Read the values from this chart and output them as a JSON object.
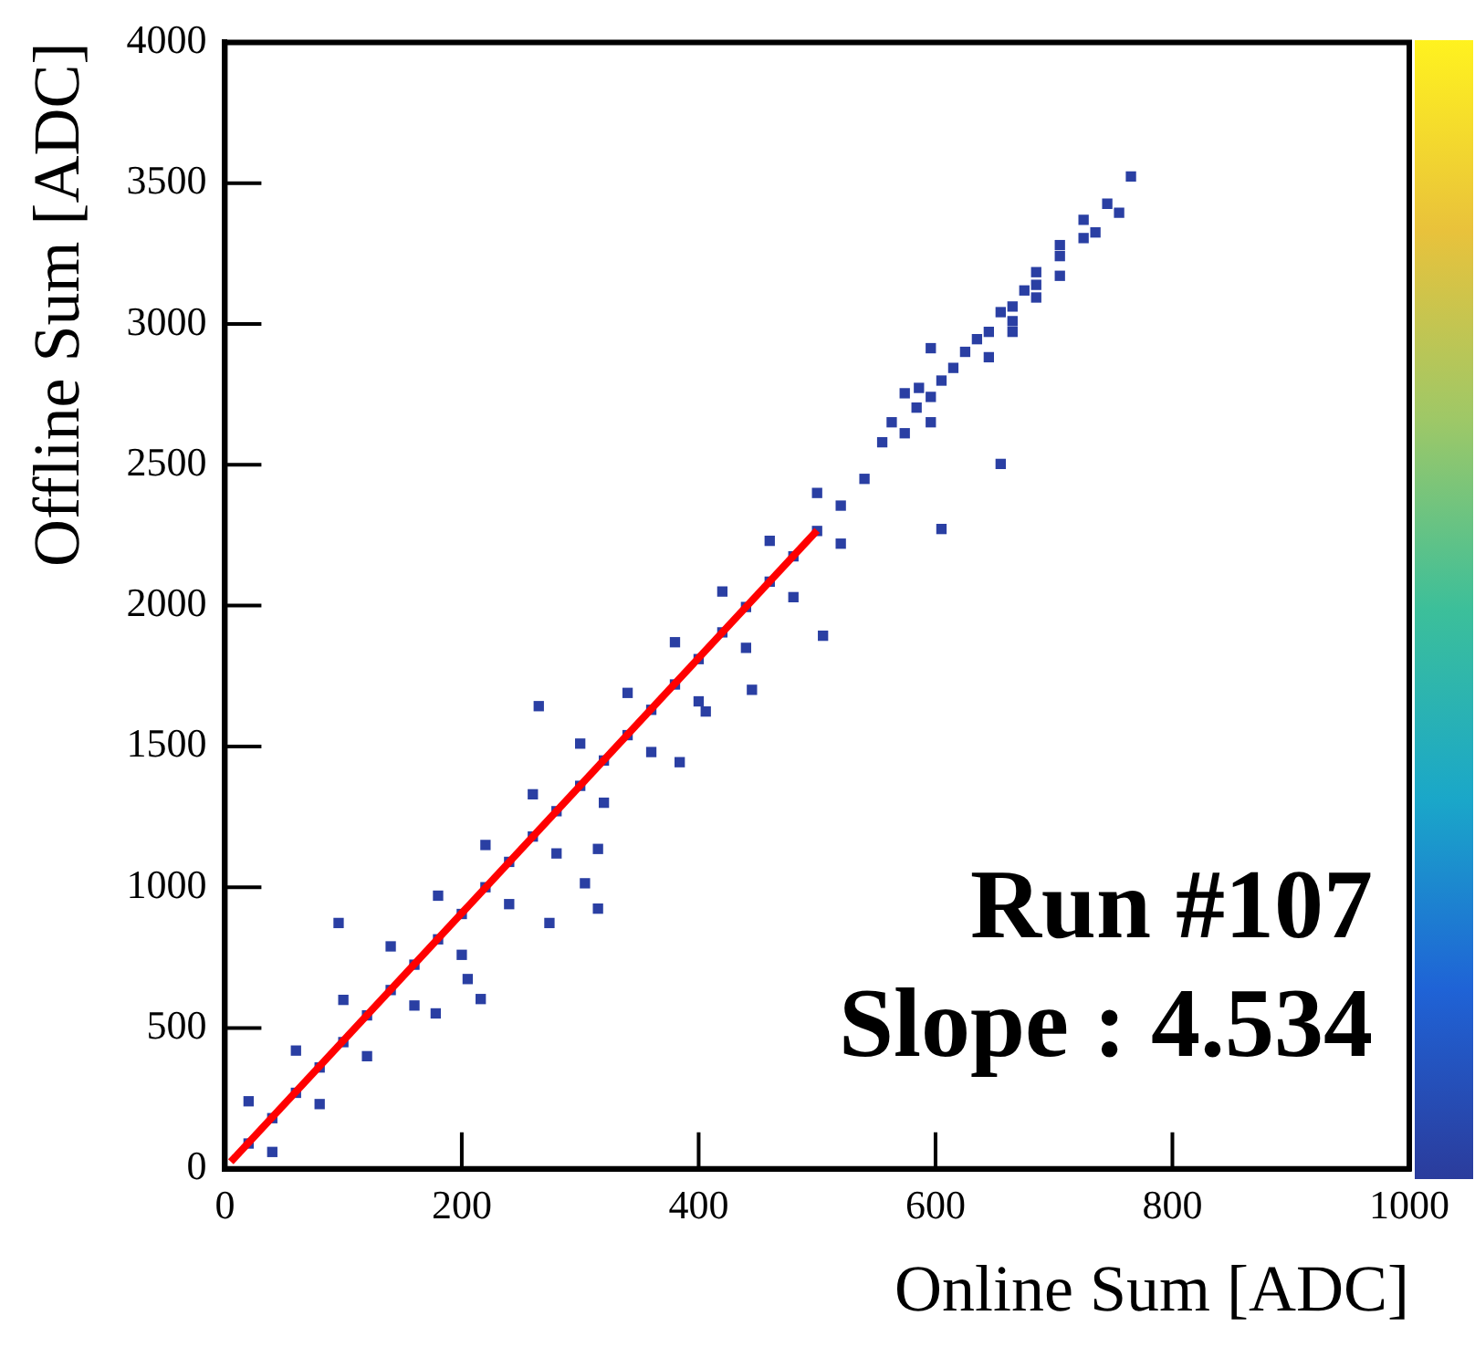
{
  "chart_data": {
    "type": "scatter",
    "xlabel": "Online Sum [ADC]",
    "ylabel": "Offline Sum [ADC]",
    "xlim": [
      0,
      1000
    ],
    "xticks": [
      0,
      200,
      400,
      600,
      800,
      1000
    ],
    "ylim": [
      0,
      4000
    ],
    "yticks": [
      0,
      500,
      1000,
      1500,
      2000,
      2500,
      3000,
      3500,
      4000
    ],
    "grid": false,
    "marker": "square",
    "series": [
      {
        "color": "#2a3fa3",
        "x": [
          20,
          40,
          60,
          80,
          100,
          120,
          140,
          160,
          180,
          200,
          220,
          240,
          260,
          280,
          300,
          320,
          340,
          360,
          380,
          400,
          420,
          440,
          460,
          480,
          500,
          520,
          540,
          20,
          60,
          100,
          140,
          180,
          220,
          260,
          300,
          340,
          380,
          420,
          460,
          500,
          40,
          80,
          120,
          160,
          200,
          240,
          280,
          320,
          360,
          400,
          440,
          480,
          520,
          765,
          745,
          755,
          725,
          735,
          725,
          705,
          705,
          705,
          685,
          685,
          675,
          685,
          665,
          655,
          665,
          665,
          645,
          635,
          596,
          645,
          625,
          615,
          605,
          586,
          596,
          574,
          584,
          596,
          563,
          574,
          555,
          655,
          605,
          505,
          445,
          265,
          406,
          384,
          315,
          304,
          274,
          315,
          96,
          216,
          205,
          178
        ],
        "values": [
          90,
          180,
          270,
          360,
          450,
          545,
          635,
          725,
          815,
          905,
          1000,
          1090,
          1180,
          1270,
          1360,
          1450,
          1540,
          1630,
          1720,
          1810,
          1905,
          1995,
          2085,
          2175,
          2265,
          2355,
          2450,
          240,
          420,
          600,
          790,
          970,
          1150,
          1330,
          1510,
          1690,
          1870,
          2050,
          2230,
          2400,
          60,
          230,
          400,
          580,
          760,
          940,
          1120,
          1300,
          1480,
          1660,
          1850,
          2030,
          2220,
          3524,
          3427,
          3395,
          3370,
          3325,
          3305,
          3280,
          3241,
          3171,
          3184,
          3139,
          3119,
          3094,
          3062,
          3042,
          3010,
          2972,
          2972,
          2946,
          2914,
          2882,
          2901,
          2844,
          2799,
          2773,
          2741,
          2754,
          2703,
          2651,
          2651,
          2612,
          2580,
          2503,
          2272,
          1893,
          1701,
          1643,
          1624,
          1444,
          1136,
          1014,
          873,
          924,
          873,
          603,
          674,
          552
        ]
      },
      {
        "type": "line",
        "color": "#ff0000",
        "x": [
          5,
          500
        ],
        "values": [
          25,
          2267
        ],
        "marker": "none"
      }
    ],
    "annotations": [
      "Run #107",
      "Slope : 4.534"
    ]
  }
}
